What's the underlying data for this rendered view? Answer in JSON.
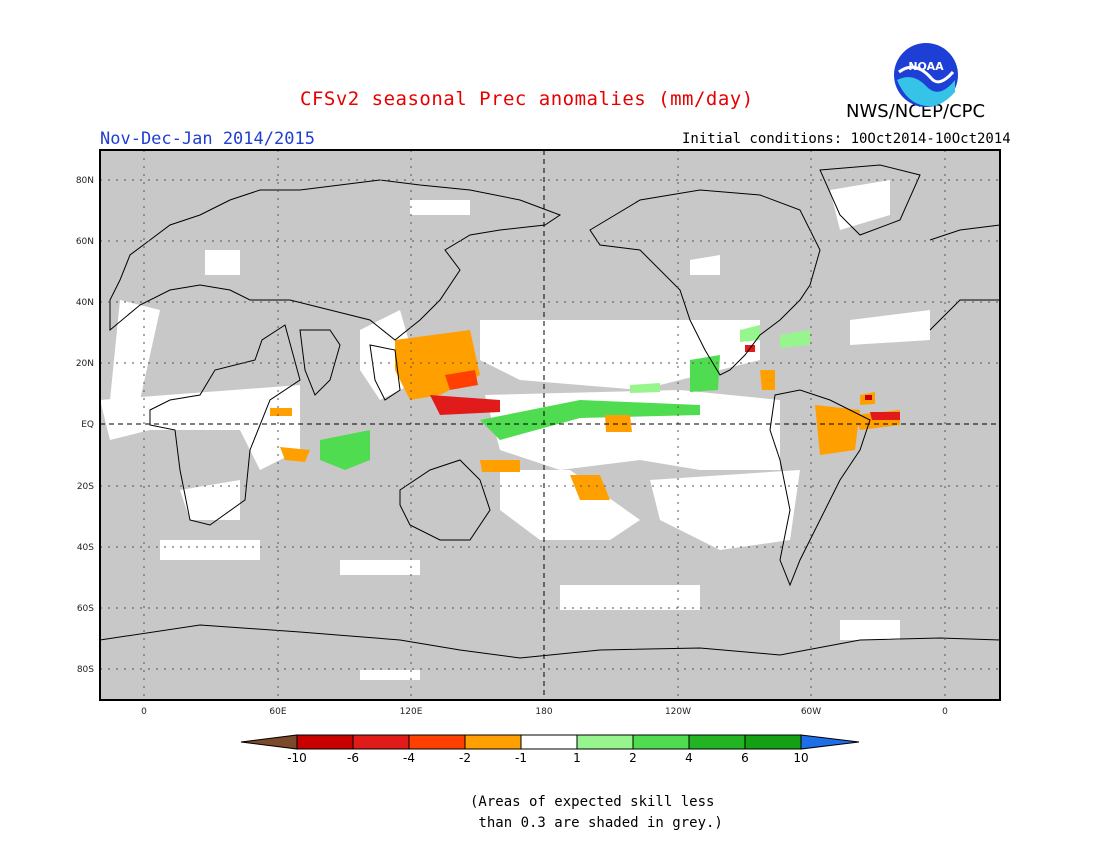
{
  "header": {
    "title": "CFSv2 seasonal Prec anomalies (mm/day)",
    "agency": "NWS/NCEP/CPC",
    "period": "Nov-Dec-Jan 2014/2015",
    "initial_conditions": "Initial conditions: 10Oct2014-10Oct2014",
    "logo_text": "NOAA"
  },
  "map": {
    "projection": "cylindrical equidistant",
    "longitude_ticks": [
      "0",
      "60E",
      "120E",
      "180",
      "120W",
      "60W",
      "0"
    ],
    "latitude_ticks": [
      "80N",
      "60N",
      "40N",
      "20N",
      "EQ",
      "20S",
      "40S",
      "60S",
      "80S"
    ],
    "grid": true,
    "colors": {
      "grey_shading": "#c8c8c8",
      "near_zero": "#ffffff",
      "neg_1_2": "#ffa000",
      "neg_2_4": "#ff4000",
      "neg_4_6": "#e11a1a",
      "neg_6_10": "#c80000",
      "pos_1_2": "#96f58c",
      "pos_2_4": "#50dc50",
      "pos_4_6": "#22b422",
      "pos_6_10": "#14a014"
    }
  },
  "colorbar": {
    "labels": [
      "-10",
      "-6",
      "-4",
      "-2",
      "-1",
      "1",
      "2",
      "4",
      "6",
      "10"
    ],
    "colors": [
      "#7a4a2a",
      "#c80000",
      "#e11a1a",
      "#ff4000",
      "#ffa000",
      "#ffffff",
      "#96f58c",
      "#50dc50",
      "#22b422",
      "#14a014",
      "#1e6ee8"
    ]
  },
  "note": {
    "line1": "(Areas of expected skill less",
    "line2": " than 0.3 are shaded in grey.)"
  }
}
